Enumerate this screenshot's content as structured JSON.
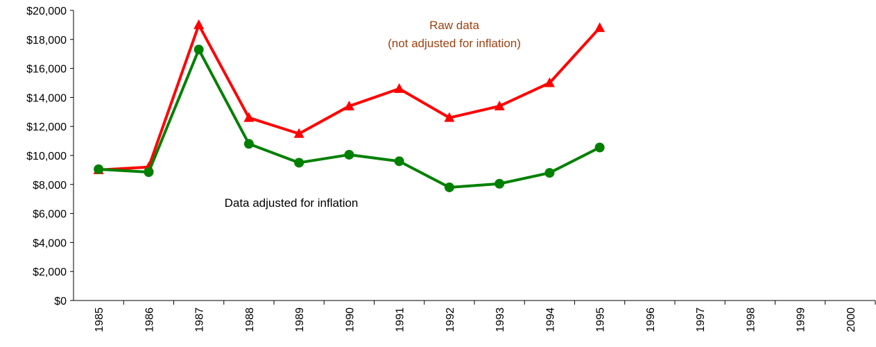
{
  "chart_data": {
    "type": "line",
    "categories": [
      "1985",
      "1986",
      "1987",
      "1988",
      "1989",
      "1990",
      "1991",
      "1992",
      "1993",
      "1994",
      "1995",
      "1996",
      "1997",
      "1998",
      "1999",
      "2000"
    ],
    "series": [
      {
        "color": "#ff0000",
        "marker": "triangle",
        "values": [
          9000,
          9200,
          19000,
          12600,
          11500,
          13400,
          14600,
          12600,
          13400,
          15000,
          18800,
          null,
          null,
          null,
          null,
          null
        ]
      },
      {
        "color": "#008000",
        "marker": "circle",
        "values": [
          9050,
          8850,
          17300,
          10800,
          9500,
          10050,
          9600,
          7800,
          8050,
          8800,
          10550,
          null,
          null,
          null,
          null,
          null
        ]
      }
    ],
    "ylim": [
      0,
      20000
    ],
    "yticks": [
      {
        "value": 0,
        "label": "$0"
      },
      {
        "value": 2000,
        "label": "$2,000"
      },
      {
        "value": 4000,
        "label": "$4,000"
      },
      {
        "value": 6000,
        "label": "$6,000"
      },
      {
        "value": 8000,
        "label": "$8,000"
      },
      {
        "value": 10000,
        "label": "$10,000"
      },
      {
        "value": 12000,
        "label": "$12,000"
      },
      {
        "value": 14000,
        "label": "$14,000"
      },
      {
        "value": 16000,
        "label": "$16,000"
      },
      {
        "value": 18000,
        "label": "$18,000"
      },
      {
        "value": 20000,
        "label": "$20,000"
      }
    ],
    "grid": false,
    "annotations": [
      {
        "lines": [
          "Raw data",
          "(not adjusted for inflation)"
        ],
        "color": "#a0400f"
      },
      {
        "lines": [
          "Data adjusted for inflation"
        ],
        "color": "#000000"
      }
    ]
  }
}
